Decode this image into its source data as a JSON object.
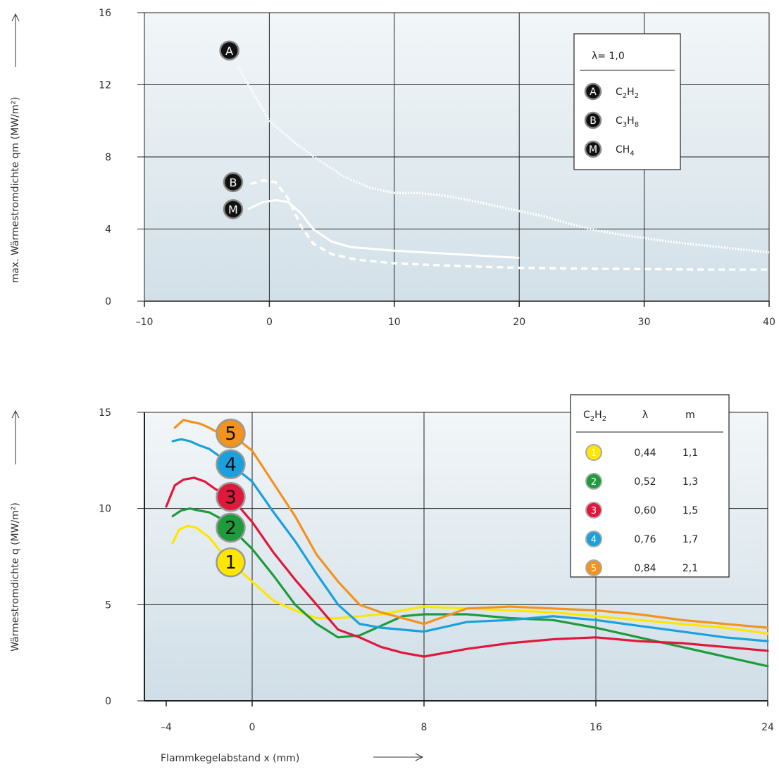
{
  "chart_data": [
    {
      "type": "line",
      "ylabel": "max. Wärmestromdichte qm (MW/m²)",
      "xlim": [
        -10,
        40
      ],
      "ylim": [
        0,
        16
      ],
      "x_ticks": [
        -10,
        0,
        10,
        20,
        30,
        40
      ],
      "x_tick_labels": [
        "–10",
        "0",
        "10",
        "20",
        "30",
        "40"
      ],
      "y_ticks": [
        0,
        4,
        8,
        12,
        16
      ],
      "y_tick_labels": [
        "0",
        "4",
        "8",
        "12",
        "16"
      ],
      "grid": true,
      "legend": {
        "position": "top-right",
        "header": "λ=  1,0",
        "entries": [
          {
            "marker": "A",
            "label": "C",
            "parts": [
              [
                "C",
                ""
              ],
              [
                "2",
                "sub"
              ],
              [
                "H",
                ""
              ],
              [
                "2",
                "sub"
              ]
            ]
          },
          {
            "marker": "B",
            "label": "C",
            "parts": [
              [
                "C",
                ""
              ],
              [
                "3",
                "sub"
              ],
              [
                "H",
                ""
              ],
              [
                "8",
                "sub"
              ]
            ]
          },
          {
            "marker": "M",
            "label": "C",
            "parts": [
              [
                "CH",
                ""
              ],
              [
                "4",
                "sub"
              ]
            ]
          }
        ]
      },
      "series": [
        {
          "marker": "A",
          "style": "dotted",
          "color": "#ffffff",
          "marker_pos": [
            -3.2,
            13.9
          ],
          "x": [
            -2.5,
            -1,
            0,
            2,
            4,
            6,
            8,
            10,
            12,
            14,
            16,
            18,
            20,
            22,
            24,
            26,
            28,
            30,
            32,
            34,
            36,
            38,
            40
          ],
          "y": [
            13,
            11.2,
            10,
            8.8,
            7.8,
            6.9,
            6.3,
            6.0,
            6.0,
            5.85,
            5.6,
            5.3,
            5.0,
            4.7,
            4.3,
            3.95,
            3.7,
            3.5,
            3.3,
            3.15,
            3.0,
            2.85,
            2.7
          ]
        },
        {
          "marker": "B",
          "style": "dashed",
          "color": "#ffffff",
          "marker_pos": [
            -2.9,
            6.6
          ],
          "x": [
            -1.5,
            -0.5,
            0.5,
            1.5,
            2.5,
            3.5,
            5,
            7,
            10,
            15,
            20,
            25,
            30,
            35,
            40
          ],
          "y": [
            6.5,
            6.7,
            6.6,
            5.7,
            4.2,
            3.2,
            2.6,
            2.3,
            2.1,
            1.95,
            1.85,
            1.8,
            1.78,
            1.75,
            1.75
          ]
        },
        {
          "marker": "M",
          "style": "solid",
          "color": "#ffffff",
          "marker_pos": [
            -2.9,
            5.1
          ],
          "x": [
            -1.7,
            -0.5,
            0.5,
            1.5,
            2.5,
            3.5,
            5,
            6.5,
            10,
            15,
            20
          ],
          "y": [
            5.1,
            5.5,
            5.6,
            5.5,
            4.9,
            4.0,
            3.3,
            3.0,
            2.8,
            2.6,
            2.4
          ]
        }
      ]
    },
    {
      "type": "line",
      "ylabel": "Wärmestromdichte q (MW/m²)",
      "xlabel": "Flammkegelabstand x (mm)",
      "xlim": [
        -5,
        24
      ],
      "ylim": [
        0,
        15
      ],
      "x_ticks": [
        -4,
        0,
        8,
        16,
        24
      ],
      "x_tick_labels": [
        "–4",
        "0",
        "8",
        "16",
        "24"
      ],
      "y_ticks": [
        0,
        5,
        10,
        15
      ],
      "y_tick_labels": [
        "0",
        "5",
        "10",
        "15"
      ],
      "grid": true,
      "legend": {
        "position": "top-right",
        "header_parts": [
          [
            "C",
            ""
          ],
          [
            "2",
            "sub"
          ],
          [
            "H",
            ""
          ],
          [
            "2",
            "sub"
          ]
        ],
        "col_headers": [
          "λ",
          "m"
        ],
        "rows": [
          {
            "id": "1",
            "lambda": "0,44",
            "m": "1,1"
          },
          {
            "id": "2",
            "lambda": "0,52",
            "m": "1,3"
          },
          {
            "id": "3",
            "lambda": "0,60",
            "m": "1,5"
          },
          {
            "id": "4",
            "lambda": "0,76",
            "m": "1,7"
          },
          {
            "id": "5",
            "lambda": "0,84",
            "m": "2,1"
          }
        ]
      },
      "series": [
        {
          "id": "1",
          "lambda": "0,44",
          "m": "1,1",
          "color": "#ffe600",
          "marker_pos": [
            -1,
            7.2
          ],
          "x": [
            -3.7,
            -3.4,
            -3,
            -2.6,
            -2,
            -1.5,
            -1,
            0,
            1,
            2,
            3,
            4,
            6,
            8,
            10,
            12,
            14,
            16,
            18,
            20,
            22,
            24
          ],
          "y": [
            8.2,
            8.9,
            9.1,
            9.0,
            8.5,
            7.8,
            7.2,
            6.2,
            5.2,
            4.7,
            4.3,
            4.3,
            4.5,
            4.9,
            4.8,
            4.7,
            4.6,
            4.4,
            4.2,
            4.0,
            3.8,
            3.5
          ]
        },
        {
          "id": "2",
          "lambda": "0,52",
          "m": "1,3",
          "color": "#1e9b3a",
          "marker_pos": [
            -1,
            9.0
          ],
          "x": [
            -3.7,
            -3.3,
            -2.9,
            -2.5,
            -2,
            -1.5,
            -1,
            0,
            1,
            2,
            3,
            4,
            5,
            6,
            7,
            8,
            10,
            12,
            14,
            16,
            18,
            20,
            22,
            24
          ],
          "y": [
            9.6,
            9.9,
            10.0,
            9.9,
            9.8,
            9.5,
            9.0,
            7.9,
            6.5,
            5.0,
            4.0,
            3.3,
            3.4,
            3.9,
            4.4,
            4.5,
            4.5,
            4.3,
            4.2,
            3.8,
            3.3,
            2.8,
            2.3,
            1.8
          ]
        },
        {
          "id": "3",
          "lambda": "0,60",
          "m": "1,5",
          "color": "#e0183c",
          "marker_pos": [
            -1,
            10.6
          ],
          "x": [
            -4,
            -3.6,
            -3.2,
            -2.7,
            -2.2,
            -1.7,
            -1,
            0,
            1,
            2,
            3,
            4,
            5,
            6,
            7,
            8,
            10,
            12,
            14,
            16,
            18,
            20,
            22,
            24
          ],
          "y": [
            10.1,
            11.2,
            11.5,
            11.6,
            11.4,
            11.0,
            10.6,
            9.3,
            7.7,
            6.3,
            5.0,
            3.7,
            3.3,
            2.8,
            2.5,
            2.3,
            2.7,
            3.0,
            3.2,
            3.3,
            3.1,
            3.0,
            2.8,
            2.6
          ]
        },
        {
          "id": "4",
          "lambda": "0,76",
          "m": "1,7",
          "color": "#1aa0dc",
          "marker_pos": [
            -1,
            12.3
          ],
          "x": [
            -3.7,
            -3.3,
            -2.9,
            -2.5,
            -2,
            -1.5,
            -1,
            0,
            1,
            2,
            3,
            4,
            5,
            6,
            7,
            8,
            10,
            12,
            14,
            16,
            18,
            20,
            22,
            24
          ],
          "y": [
            13.5,
            13.6,
            13.5,
            13.3,
            13.1,
            12.7,
            12.3,
            11.4,
            9.8,
            8.3,
            6.6,
            5.0,
            4.0,
            3.8,
            3.7,
            3.6,
            4.1,
            4.2,
            4.4,
            4.2,
            3.9,
            3.6,
            3.3,
            3.1
          ]
        },
        {
          "id": "5",
          "lambda": "0,84",
          "m": "2,1",
          "color": "#f3921c",
          "marker_pos": [
            -1,
            13.9
          ],
          "x": [
            -3.6,
            -3.2,
            -2.8,
            -2.4,
            -2,
            -1.5,
            -1,
            0,
            1,
            2,
            3,
            4,
            5,
            6,
            7,
            8,
            10,
            12,
            14,
            16,
            18,
            20,
            22,
            24
          ],
          "y": [
            14.2,
            14.6,
            14.5,
            14.4,
            14.2,
            13.9,
            13.9,
            13.0,
            11.3,
            9.6,
            7.6,
            6.2,
            5.0,
            4.6,
            4.3,
            4.0,
            4.8,
            4.9,
            4.8,
            4.7,
            4.5,
            4.2,
            4.0,
            3.8
          ]
        }
      ]
    }
  ]
}
